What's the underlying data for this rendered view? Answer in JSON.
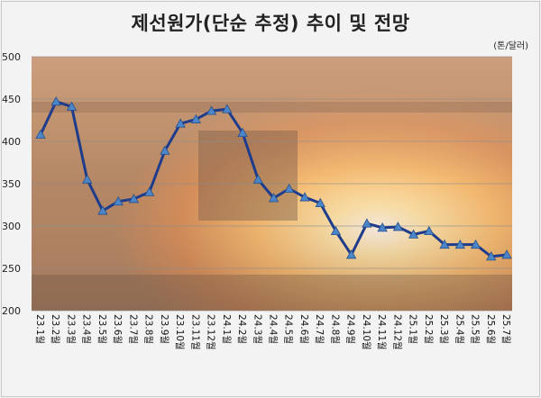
{
  "title": "제선원가(단순 추정) 추이 및 전망",
  "unit": "(톤/달러)",
  "chart_data": {
    "type": "line",
    "title": "제선원가(단순 추정) 추이 및 전망",
    "unit": "(톤/달러)",
    "xlabel": "",
    "ylabel": "",
    "ylim": [
      200,
      500
    ],
    "yticks": [
      200,
      250,
      300,
      350,
      400,
      450,
      500
    ],
    "grid": true,
    "categories": [
      "23.1월",
      "23.2월",
      "23.3월",
      "23.4월",
      "23.5월",
      "23.6월",
      "23.7월",
      "23.8월",
      "23.9월",
      "23.10월",
      "23.11월",
      "23.12월",
      "24.1월",
      "24.2월",
      "24.3월",
      "24.4월",
      "24.5월",
      "24.6월",
      "24.7월",
      "24.8월",
      "24.9월",
      "24.10월",
      "24.11월",
      "24.12월",
      "25.1월",
      "25.2월",
      "25.3월",
      "25.4월",
      "25.5월",
      "25.6월",
      "25.7월"
    ],
    "series": [
      {
        "values": [
          408,
          447,
          441,
          355,
          318,
          329,
          332,
          340,
          389,
          421,
          426,
          436,
          438,
          410,
          355,
          333,
          344,
          334,
          327,
          294,
          266,
          303,
          298,
          299,
          290,
          294,
          278,
          278,
          278,
          264,
          266
        ],
        "color": "#1f3c8c",
        "marker_color": "#4a86c8"
      }
    ],
    "background": "steel-mill-furnace-photo"
  }
}
